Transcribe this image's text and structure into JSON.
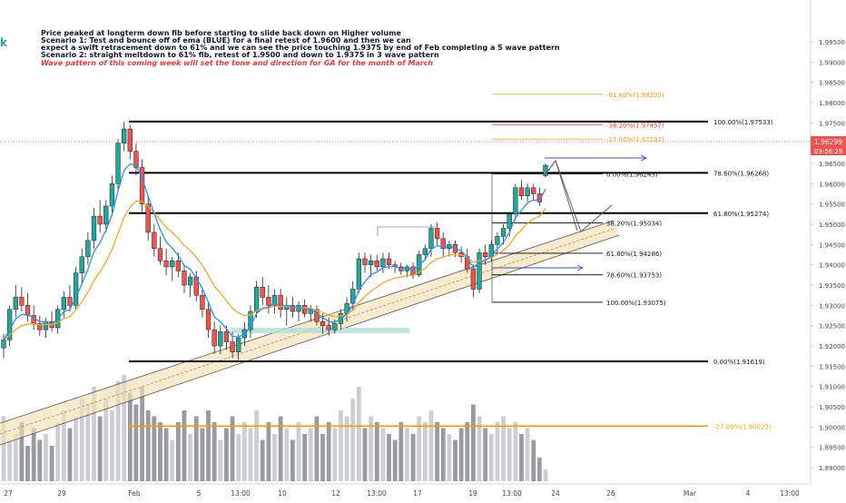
{
  "notes": {
    "line1": "Price peaked at longterm down fib before starting to slide back down on Higher volume",
    "line2": "Scenario 1: Test and bounce off of ema (BLUE) for a final retest of 1.9600 and then we can",
    "line3": "expect a swift retracement down to 61% and we can see the price touching 1.9375 by end of Feb completing a 5 wave pattern",
    "line4": "Scenario 2: straight meltdown to 61% fib, retest of 1.9500 and down to 1.9375 in 3 wave pattern",
    "line5": "Wave pattern of this coming week will set the tone and direction for GA for the month of March"
  },
  "left_tag": "k",
  "chart_data": {
    "type": "candlestick",
    "symbol_hint": "GA",
    "ylim": [
      1.8875,
      2.0
    ],
    "y_ticks": [
      "1.89000",
      "1.89500",
      "1.90000",
      "1.90500",
      "1.91000",
      "1.91500",
      "1.92000",
      "1.92500",
      "1.93000",
      "1.93500",
      "1.94000",
      "1.94500",
      "1.95000",
      "1.95500",
      "1.96000",
      "1.96500",
      "1.97000",
      "1.97500",
      "1.98000",
      "1.98500",
      "1.99000",
      "1.99500"
    ],
    "x_ticks": [
      "27",
      "29",
      "Feb",
      "5",
      "13:00",
      "10",
      "12",
      "13:00",
      "17",
      "19",
      "13:00",
      "24",
      "26",
      "Mar",
      "4",
      "13:00"
    ],
    "price_label": "1.96299",
    "countdown_label": "03:56:29",
    "current_price": 1.96299,
    "fib_levels_long": [
      {
        "label": "100.00%(1.97533)",
        "value": 1.97533
      },
      {
        "label": "78.60%(1.96268)",
        "value": 1.96268
      },
      {
        "label": "61.80%(1.95274)",
        "value": 1.95274
      },
      {
        "label": "0.00%(1.91619)",
        "value": 1.91619
      },
      {
        "label": "-27.00%(1.90022)",
        "value": 1.90022
      }
    ],
    "fib_levels_short": [
      {
        "label": "-61.80%(1.98205)",
        "value": 1.98205
      },
      {
        "label": "-38.20%(1.97457)",
        "value": 1.97457
      },
      {
        "label": "-27.00%(1.97102)",
        "value": 1.97102
      },
      {
        "label": "0.00%(1.96245)",
        "value": 1.96245
      },
      {
        "label": "38.20%(1.95034)",
        "value": 1.95034
      },
      {
        "label": "61.80%(1.94286)",
        "value": 1.94286
      },
      {
        "label": "78.60%(1.93753)",
        "value": 1.93753
      },
      {
        "label": "100.00%(1.93075)",
        "value": 1.93075
      }
    ],
    "candles": [
      {
        "o": 1.9195,
        "h": 1.923,
        "l": 1.917,
        "c": 1.9215
      },
      {
        "o": 1.9215,
        "h": 1.93,
        "l": 1.92,
        "c": 1.929
      },
      {
        "o": 1.929,
        "h": 1.935,
        "l": 1.927,
        "c": 1.932
      },
      {
        "o": 1.932,
        "h": 1.9345,
        "l": 1.9285,
        "c": 1.93
      },
      {
        "o": 1.93,
        "h": 1.933,
        "l": 1.926,
        "c": 1.9275
      },
      {
        "o": 1.9275,
        "h": 1.93,
        "l": 1.924,
        "c": 1.9255
      },
      {
        "o": 1.9255,
        "h": 1.9275,
        "l": 1.9225,
        "c": 1.924
      },
      {
        "o": 1.924,
        "h": 1.927,
        "l": 1.922,
        "c": 1.926
      },
      {
        "o": 1.926,
        "h": 1.9285,
        "l": 1.9235,
        "c": 1.9245
      },
      {
        "o": 1.9245,
        "h": 1.93,
        "l": 1.923,
        "c": 1.929
      },
      {
        "o": 1.929,
        "h": 1.9335,
        "l": 1.927,
        "c": 1.932
      },
      {
        "o": 1.932,
        "h": 1.935,
        "l": 1.9285,
        "c": 1.93
      },
      {
        "o": 1.93,
        "h": 1.9395,
        "l": 1.929,
        "c": 1.938
      },
      {
        "o": 1.938,
        "h": 1.944,
        "l": 1.935,
        "c": 1.942
      },
      {
        "o": 1.942,
        "h": 1.948,
        "l": 1.94,
        "c": 1.946
      },
      {
        "o": 1.946,
        "h": 1.954,
        "l": 1.944,
        "c": 1.952
      },
      {
        "o": 1.952,
        "h": 1.956,
        "l": 1.948,
        "c": 1.95
      },
      {
        "o": 1.95,
        "h": 1.956,
        "l": 1.948,
        "c": 1.9545
      },
      {
        "o": 1.9545,
        "h": 1.962,
        "l": 1.952,
        "c": 1.96
      },
      {
        "o": 1.96,
        "h": 1.971,
        "l": 1.958,
        "c": 1.97
      },
      {
        "o": 1.97,
        "h": 1.9753,
        "l": 1.968,
        "c": 1.9735
      },
      {
        "o": 1.9735,
        "h": 1.9745,
        "l": 1.966,
        "c": 1.968
      },
      {
        "o": 1.968,
        "h": 1.97,
        "l": 1.962,
        "c": 1.964
      },
      {
        "o": 1.964,
        "h": 1.966,
        "l": 1.953,
        "c": 1.955
      },
      {
        "o": 1.955,
        "h": 1.957,
        "l": 1.946,
        "c": 1.948
      },
      {
        "o": 1.948,
        "h": 1.95,
        "l": 1.942,
        "c": 1.944
      },
      {
        "o": 1.944,
        "h": 1.947,
        "l": 1.94,
        "c": 1.941
      },
      {
        "o": 1.941,
        "h": 1.944,
        "l": 1.9375,
        "c": 1.9395
      },
      {
        "o": 1.9395,
        "h": 1.942,
        "l": 1.936,
        "c": 1.941
      },
      {
        "o": 1.941,
        "h": 1.943,
        "l": 1.937,
        "c": 1.9385
      },
      {
        "o": 1.9385,
        "h": 1.94,
        "l": 1.933,
        "c": 1.935
      },
      {
        "o": 1.935,
        "h": 1.938,
        "l": 1.932,
        "c": 1.937
      },
      {
        "o": 1.937,
        "h": 1.9385,
        "l": 1.931,
        "c": 1.9325
      },
      {
        "o": 1.9325,
        "h": 1.934,
        "l": 1.927,
        "c": 1.929
      },
      {
        "o": 1.929,
        "h": 1.931,
        "l": 1.922,
        "c": 1.924
      },
      {
        "o": 1.924,
        "h": 1.926,
        "l": 1.918,
        "c": 1.92
      },
      {
        "o": 1.92,
        "h": 1.925,
        "l": 1.918,
        "c": 1.9235
      },
      {
        "o": 1.9235,
        "h": 1.925,
        "l": 1.919,
        "c": 1.921
      },
      {
        "o": 1.921,
        "h": 1.9235,
        "l": 1.917,
        "c": 1.9185
      },
      {
        "o": 1.9185,
        "h": 1.923,
        "l": 1.9165,
        "c": 1.922
      },
      {
        "o": 1.922,
        "h": 1.926,
        "l": 1.92,
        "c": 1.924
      },
      {
        "o": 1.924,
        "h": 1.93,
        "l": 1.922,
        "c": 1.9285
      },
      {
        "o": 1.9285,
        "h": 1.936,
        "l": 1.927,
        "c": 1.9345
      },
      {
        "o": 1.9345,
        "h": 1.937,
        "l": 1.93,
        "c": 1.932
      },
      {
        "o": 1.932,
        "h": 1.935,
        "l": 1.928,
        "c": 1.93
      },
      {
        "o": 1.93,
        "h": 1.934,
        "l": 1.928,
        "c": 1.9325
      },
      {
        "o": 1.9325,
        "h": 1.934,
        "l": 1.927,
        "c": 1.929
      },
      {
        "o": 1.929,
        "h": 1.932,
        "l": 1.925,
        "c": 1.93
      },
      {
        "o": 1.93,
        "h": 1.932,
        "l": 1.927,
        "c": 1.9285
      },
      {
        "o": 1.9285,
        "h": 1.931,
        "l": 1.926,
        "c": 1.93
      },
      {
        "o": 1.93,
        "h": 1.9315,
        "l": 1.927,
        "c": 1.928
      },
      {
        "o": 1.928,
        "h": 1.93,
        "l": 1.926,
        "c": 1.929
      },
      {
        "o": 1.929,
        "h": 1.93,
        "l": 1.925,
        "c": 1.926
      },
      {
        "o": 1.926,
        "h": 1.928,
        "l": 1.923,
        "c": 1.925
      },
      {
        "o": 1.925,
        "h": 1.927,
        "l": 1.9225,
        "c": 1.924
      },
      {
        "o": 1.924,
        "h": 1.9265,
        "l": 1.923,
        "c": 1.9255
      },
      {
        "o": 1.9255,
        "h": 1.929,
        "l": 1.924,
        "c": 1.928
      },
      {
        "o": 1.928,
        "h": 1.932,
        "l": 1.926,
        "c": 1.9305
      },
      {
        "o": 1.9305,
        "h": 1.936,
        "l": 1.929,
        "c": 1.934
      },
      {
        "o": 1.934,
        "h": 1.943,
        "l": 1.933,
        "c": 1.9415
      },
      {
        "o": 1.9415,
        "h": 1.943,
        "l": 1.938,
        "c": 1.94
      },
      {
        "o": 1.94,
        "h": 1.9425,
        "l": 1.937,
        "c": 1.941
      },
      {
        "o": 1.941,
        "h": 1.9425,
        "l": 1.9385,
        "c": 1.9395
      },
      {
        "o": 1.9395,
        "h": 1.943,
        "l": 1.938,
        "c": 1.9415
      },
      {
        "o": 1.9415,
        "h": 1.943,
        "l": 1.939,
        "c": 1.94
      },
      {
        "o": 1.94,
        "h": 1.941,
        "l": 1.938,
        "c": 1.9395
      },
      {
        "o": 1.9395,
        "h": 1.9405,
        "l": 1.9375,
        "c": 1.9385
      },
      {
        "o": 1.9385,
        "h": 1.94,
        "l": 1.937,
        "c": 1.9395
      },
      {
        "o": 1.9395,
        "h": 1.9405,
        "l": 1.9365,
        "c": 1.9375
      },
      {
        "o": 1.9375,
        "h": 1.9435,
        "l": 1.937,
        "c": 1.9425
      },
      {
        "o": 1.9425,
        "h": 1.945,
        "l": 1.941,
        "c": 1.944
      },
      {
        "o": 1.944,
        "h": 1.95,
        "l": 1.942,
        "c": 1.949
      },
      {
        "o": 1.949,
        "h": 1.9505,
        "l": 1.945,
        "c": 1.9465
      },
      {
        "o": 1.9465,
        "h": 1.948,
        "l": 1.942,
        "c": 1.944
      },
      {
        "o": 1.944,
        "h": 1.946,
        "l": 1.942,
        "c": 1.945
      },
      {
        "o": 1.945,
        "h": 1.946,
        "l": 1.942,
        "c": 1.943
      },
      {
        "o": 1.943,
        "h": 1.9445,
        "l": 1.9405,
        "c": 1.942
      },
      {
        "o": 1.942,
        "h": 1.944,
        "l": 1.938,
        "c": 1.939
      },
      {
        "o": 1.939,
        "h": 1.94,
        "l": 1.932,
        "c": 1.934
      },
      {
        "o": 1.934,
        "h": 1.944,
        "l": 1.933,
        "c": 1.943
      },
      {
        "o": 1.943,
        "h": 1.945,
        "l": 1.94,
        "c": 1.942
      },
      {
        "o": 1.942,
        "h": 1.946,
        "l": 1.941,
        "c": 1.945
      },
      {
        "o": 1.945,
        "h": 1.948,
        "l": 1.943,
        "c": 1.947
      },
      {
        "o": 1.947,
        "h": 1.95,
        "l": 1.945,
        "c": 1.949
      },
      {
        "o": 1.949,
        "h": 1.953,
        "l": 1.947,
        "c": 1.9525
      },
      {
        "o": 1.9525,
        "h": 1.96,
        "l": 1.951,
        "c": 1.959
      },
      {
        "o": 1.959,
        "h": 1.961,
        "l": 1.956,
        "c": 1.957
      },
      {
        "o": 1.957,
        "h": 1.96,
        "l": 1.9555,
        "c": 1.959
      },
      {
        "o": 1.959,
        "h": 1.96,
        "l": 1.956,
        "c": 1.9575
      },
      {
        "o": 1.9575,
        "h": 1.959,
        "l": 1.9545,
        "c": 1.9555
      },
      {
        "o": 1.962,
        "h": 1.965,
        "l": 1.9615,
        "c": 1.9645
      }
    ],
    "volumes": [
      0.55,
      0.35,
      0.4,
      0.5,
      0.3,
      0.45,
      0.35,
      0.4,
      0.3,
      0.5,
      0.6,
      0.45,
      0.55,
      0.7,
      0.65,
      0.8,
      0.55,
      0.7,
      0.6,
      0.85,
      0.9,
      0.75,
      0.65,
      0.8,
      0.6,
      0.55,
      0.5,
      0.45,
      0.35,
      0.5,
      0.6,
      0.4,
      0.55,
      0.45,
      0.6,
      0.5,
      0.35,
      0.45,
      0.55,
      0.4,
      0.5,
      0.45,
      0.6,
      0.35,
      0.5,
      0.4,
      0.55,
      0.45,
      0.35,
      0.5,
      0.4,
      0.45,
      0.55,
      0.4,
      0.5,
      0.45,
      0.6,
      0.55,
      0.7,
      0.8,
      0.45,
      0.55,
      0.5,
      0.45,
      0.4,
      0.35,
      0.5,
      0.45,
      0.4,
      0.55,
      0.5,
      0.6,
      0.5,
      0.45,
      0.4,
      0.35,
      0.45,
      0.5,
      0.65,
      0.55,
      0.45,
      0.4,
      0.5,
      0.55,
      0.45,
      0.5,
      0.4,
      0.45,
      0.35,
      0.2,
      0.1
    ]
  }
}
